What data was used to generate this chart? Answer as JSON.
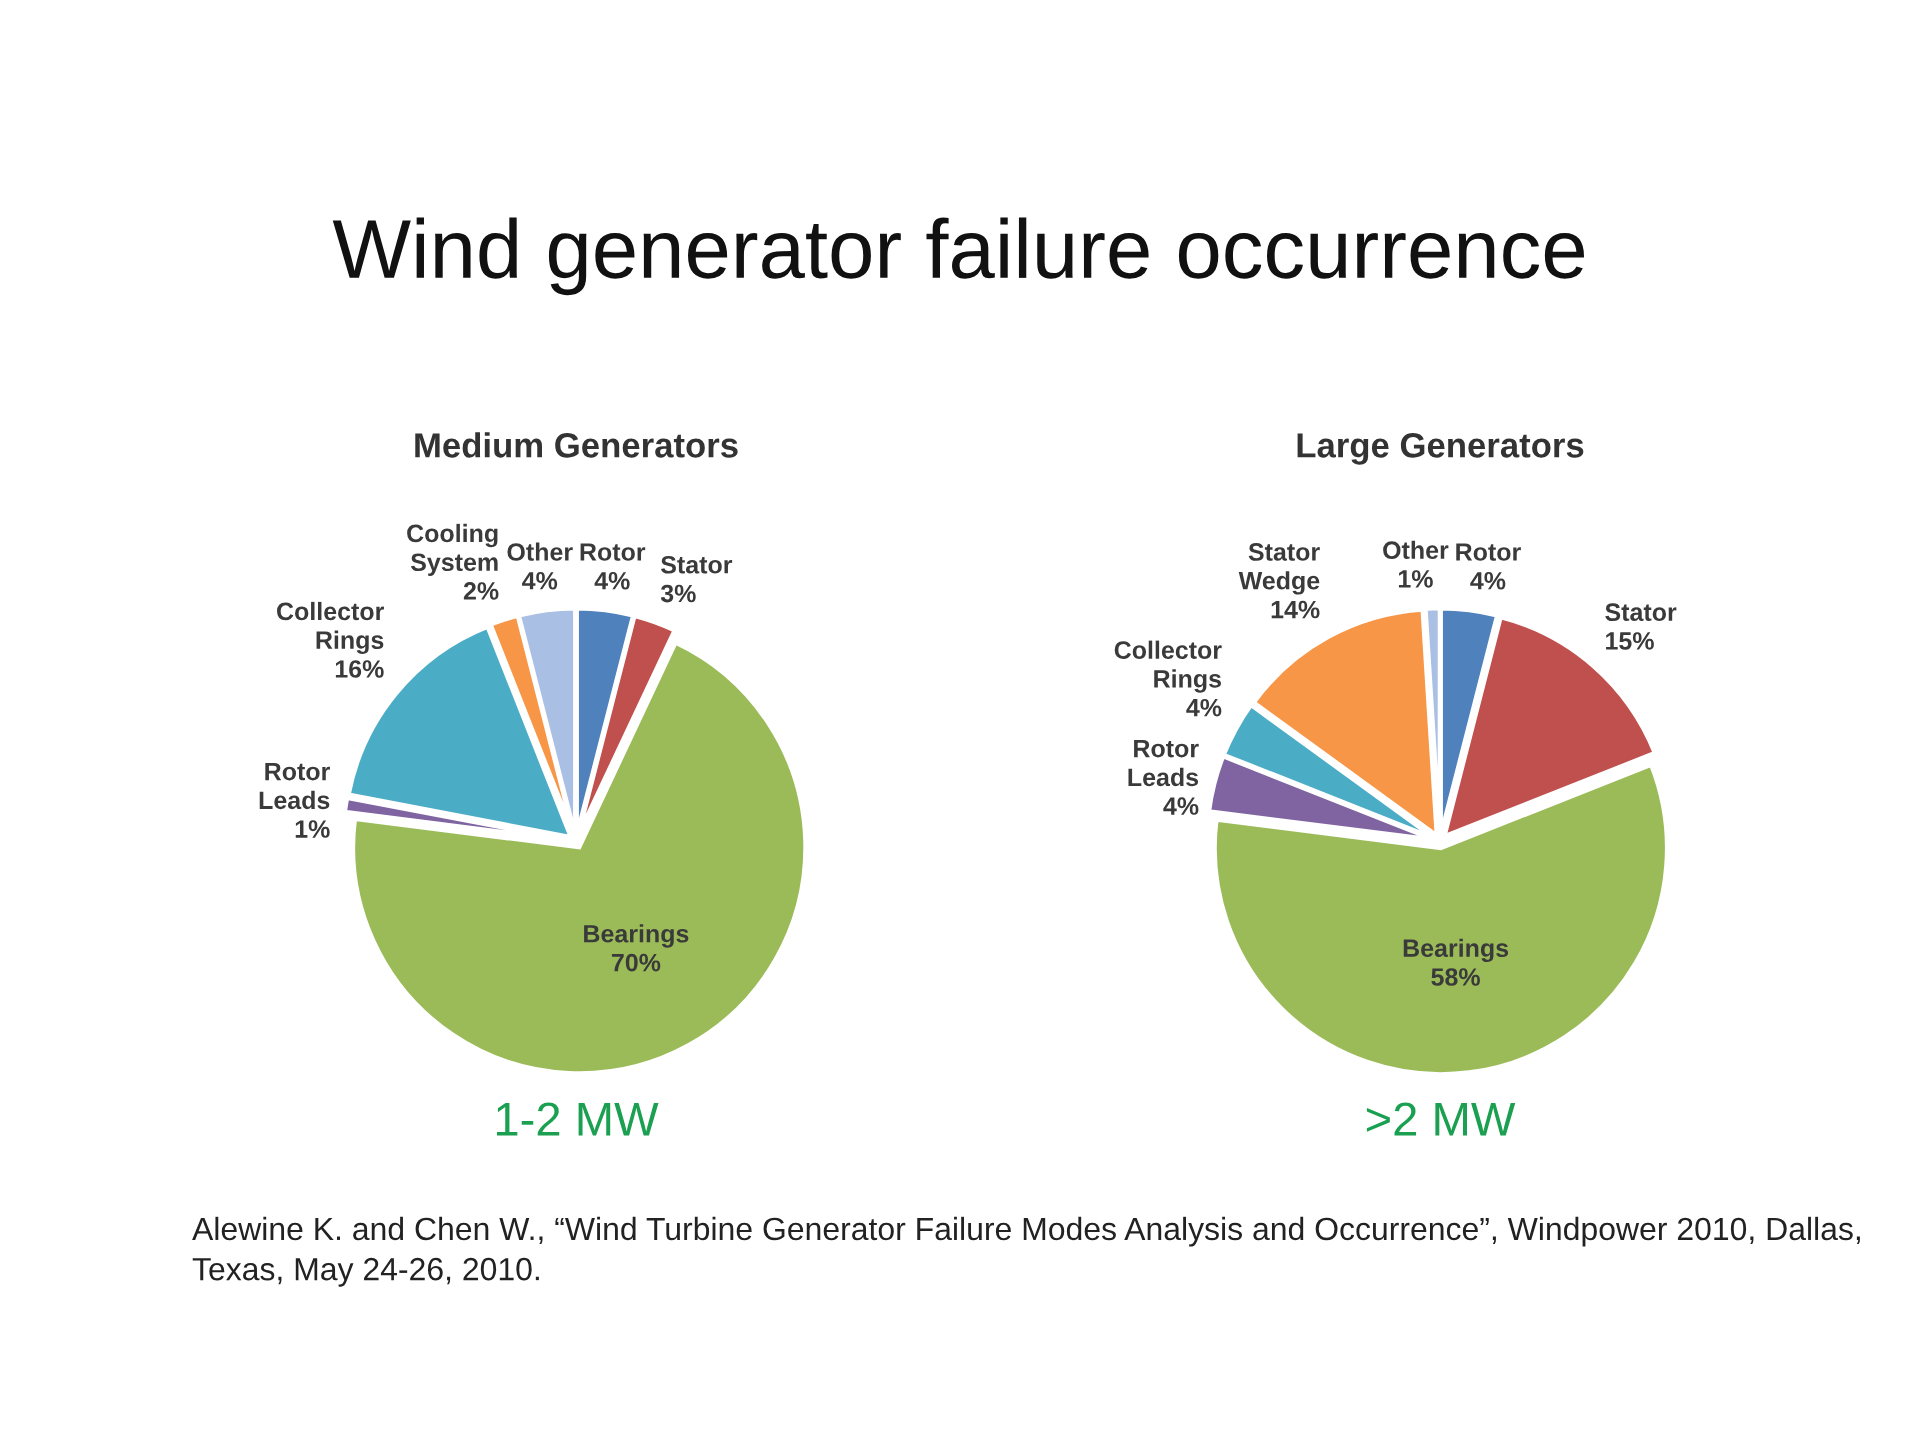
{
  "chart_data": [
    {
      "type": "pie",
      "title": "Medium Generators",
      "xlabel": "1-2 MW",
      "categories": [
        "Rotor",
        "Stator",
        "Bearings",
        "Rotor Leads",
        "Collector Rings",
        "Cooling System",
        "Other"
      ],
      "values": [
        4,
        3,
        70,
        1,
        16,
        2,
        4
      ],
      "value_labels": [
        "4%",
        "3%",
        "70%",
        "1%",
        "16%",
        "2%",
        "4%"
      ],
      "colors": [
        "#4f81bd",
        "#c0504d",
        "#9bbb59",
        "#8064a2",
        "#4bacc6",
        "#f79646",
        "#a9bfe3"
      ],
      "annotations": [
        "Wind generator failure occurrence",
        "Alewine K. and Chen W., “Wind Turbine Generator Failure Modes Analysis and Occurrence”, Windpower 2010, Dallas, Texas, May 24-26, 2010."
      ]
    },
    {
      "type": "pie",
      "title": "Large Generators",
      "xlabel": ">2 MW",
      "categories": [
        "Rotor",
        "Stator",
        "Bearings",
        "Rotor Leads",
        "Collector Rings",
        "Stator Wedge",
        "Other"
      ],
      "values": [
        4,
        15,
        58,
        4,
        4,
        14,
        1
      ],
      "value_labels": [
        "4%",
        "15%",
        "58%",
        "4%",
        "4%",
        "14%",
        "1%"
      ],
      "colors": [
        "#4f81bd",
        "#c0504d",
        "#9bbb59",
        "#8064a2",
        "#4bacc6",
        "#f79646",
        "#a9bfe3"
      ]
    }
  ]
}
